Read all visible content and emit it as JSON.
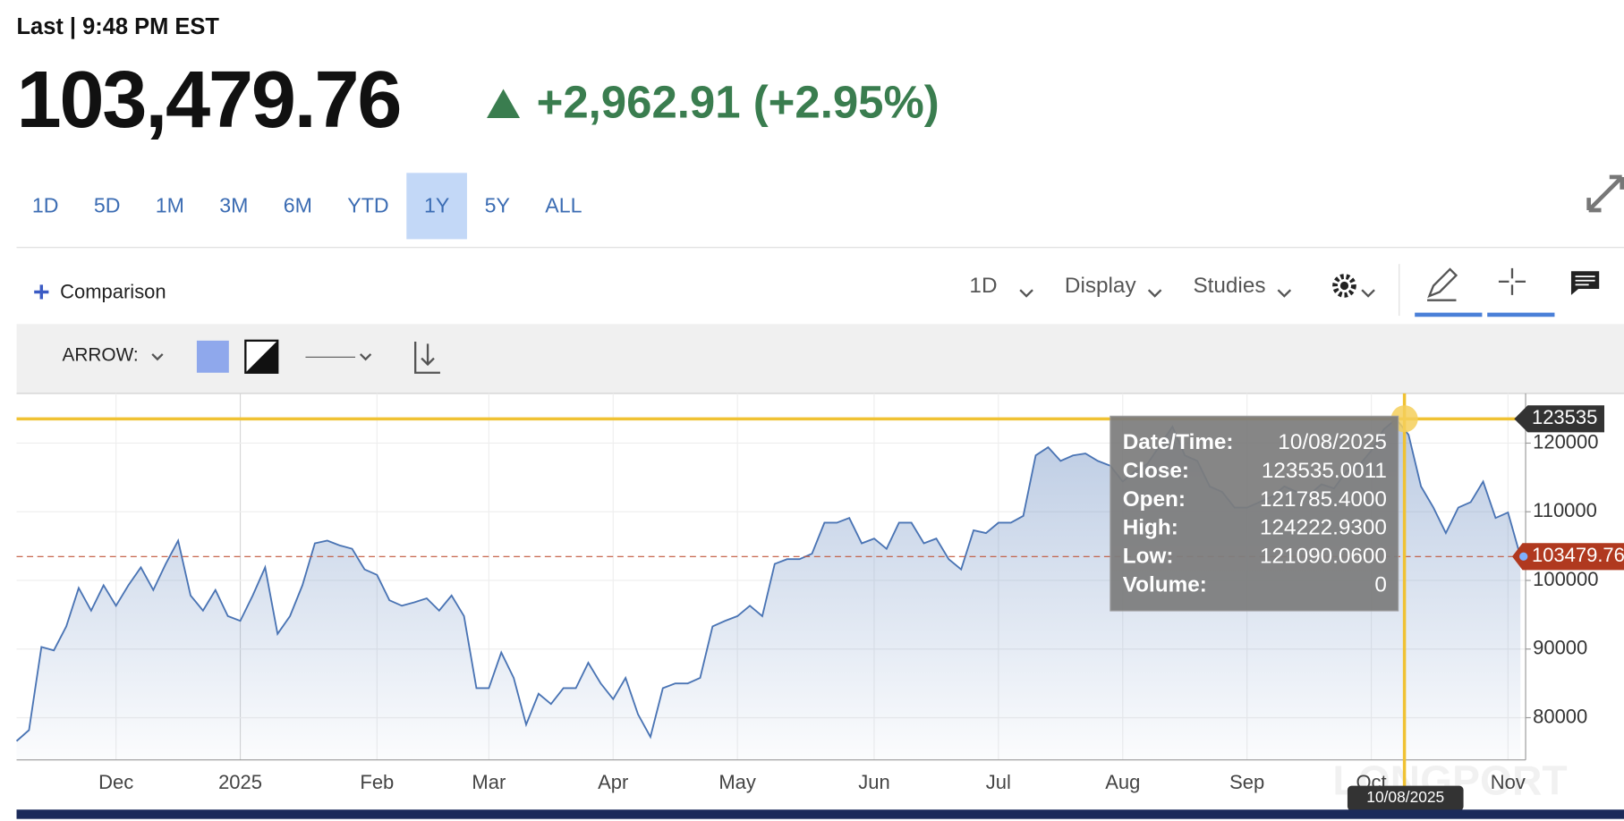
{
  "header": {
    "last_label": "Last | 9:48 PM EST",
    "price": "103,479.76",
    "change": "+2,962.91 (+2.95%)"
  },
  "ranges": {
    "items": [
      "1D",
      "5D",
      "1M",
      "3M",
      "6M",
      "YTD",
      "1Y",
      "5Y",
      "ALL"
    ],
    "active": "1Y"
  },
  "toolbar": {
    "comparison": "Comparison",
    "interval": "1D",
    "display": "Display",
    "studies": "Studies"
  },
  "drawing_toolbar": {
    "tool": "ARROW:"
  },
  "chart_data": {
    "type": "line",
    "categories": [
      null,
      null,
      null,
      null,
      null,
      null,
      null,
      null,
      "Dec",
      null,
      null,
      null,
      null,
      null,
      null,
      null,
      null,
      null,
      "2025",
      null,
      null,
      null,
      null,
      null,
      null,
      null,
      null,
      null,
      null,
      "Feb",
      null,
      null,
      null,
      null,
      null,
      null,
      null,
      null,
      "Mar",
      null,
      null,
      null,
      null,
      null,
      null,
      null,
      null,
      null,
      "Apr",
      null,
      null,
      null,
      null,
      null,
      null,
      null,
      null,
      null,
      "May",
      null,
      null,
      null,
      null,
      null,
      null,
      null,
      null,
      null,
      null,
      "Jun",
      null,
      null,
      null,
      null,
      null,
      null,
      null,
      null,
      null,
      "Jul",
      null,
      null,
      null,
      null,
      null,
      null,
      null,
      null,
      null,
      "Aug",
      null,
      null,
      null,
      null,
      null,
      null,
      null,
      null,
      null,
      "Sep",
      null,
      null,
      null,
      null,
      null,
      null,
      null,
      null,
      null,
      "Oct",
      null,
      null,
      null,
      null,
      null,
      null,
      null,
      null,
      null,
      null,
      "Nov",
      null
    ],
    "series": [
      {
        "color": "#4a74b4",
        "values": [
          76600,
          78200,
          90300,
          89800,
          93300,
          98900,
          95600,
          99300,
          96300,
          99300,
          101900,
          98600,
          102400,
          105800,
          97800,
          95600,
          98600,
          94800,
          94100,
          97800,
          101900,
          92200,
          94800,
          99300,
          105400,
          105800,
          105100,
          104600,
          101600,
          100800,
          97100,
          96300,
          96800,
          97400,
          95600,
          97800,
          94800,
          84300,
          84300,
          89500,
          85800,
          79000,
          83500,
          82000,
          84300,
          84300,
          88000,
          85000,
          82700,
          85800,
          80500,
          77200,
          84300,
          85000,
          85000,
          85800,
          93300,
          94100,
          94800,
          96300,
          94800,
          102400,
          103100,
          103100,
          103900,
          108400,
          108400,
          109100,
          105400,
          106100,
          104600,
          108400,
          108400,
          105400,
          106100,
          103100,
          101600,
          107300,
          106900,
          108400,
          108400,
          109400,
          118200,
          119400,
          117400,
          118200,
          118500,
          117400,
          116700,
          114400,
          115900,
          117000,
          119700,
          122400,
          118200,
          117400,
          113700,
          112900,
          110600,
          110600,
          111400,
          112200,
          113700,
          112900,
          112500,
          114000,
          113400,
          115900,
          116700,
          118900,
          122000,
          123500,
          121200,
          113700,
          110600,
          106900,
          110600,
          111400,
          114400,
          109100,
          109900,
          103479.76
        ]
      }
    ],
    "ylim": [
      73850,
      127240
    ],
    "yticks": [
      80000,
      90000,
      100000,
      110000,
      120000
    ],
    "grid": true,
    "last_value": 103479.76,
    "crosshair": {
      "value": 123535,
      "date": "10/08/2025"
    },
    "tooltip": {
      "rows": [
        [
          "Date/Time:",
          "10/08/2025"
        ],
        [
          "Close:",
          "123535.0011"
        ],
        [
          "Open:",
          "121785.4000"
        ],
        [
          "High:",
          "124222.9300"
        ],
        [
          "Low:",
          "121090.0600"
        ],
        [
          "Volume:",
          "0"
        ]
      ]
    },
    "watermark": "LONGPORT"
  }
}
